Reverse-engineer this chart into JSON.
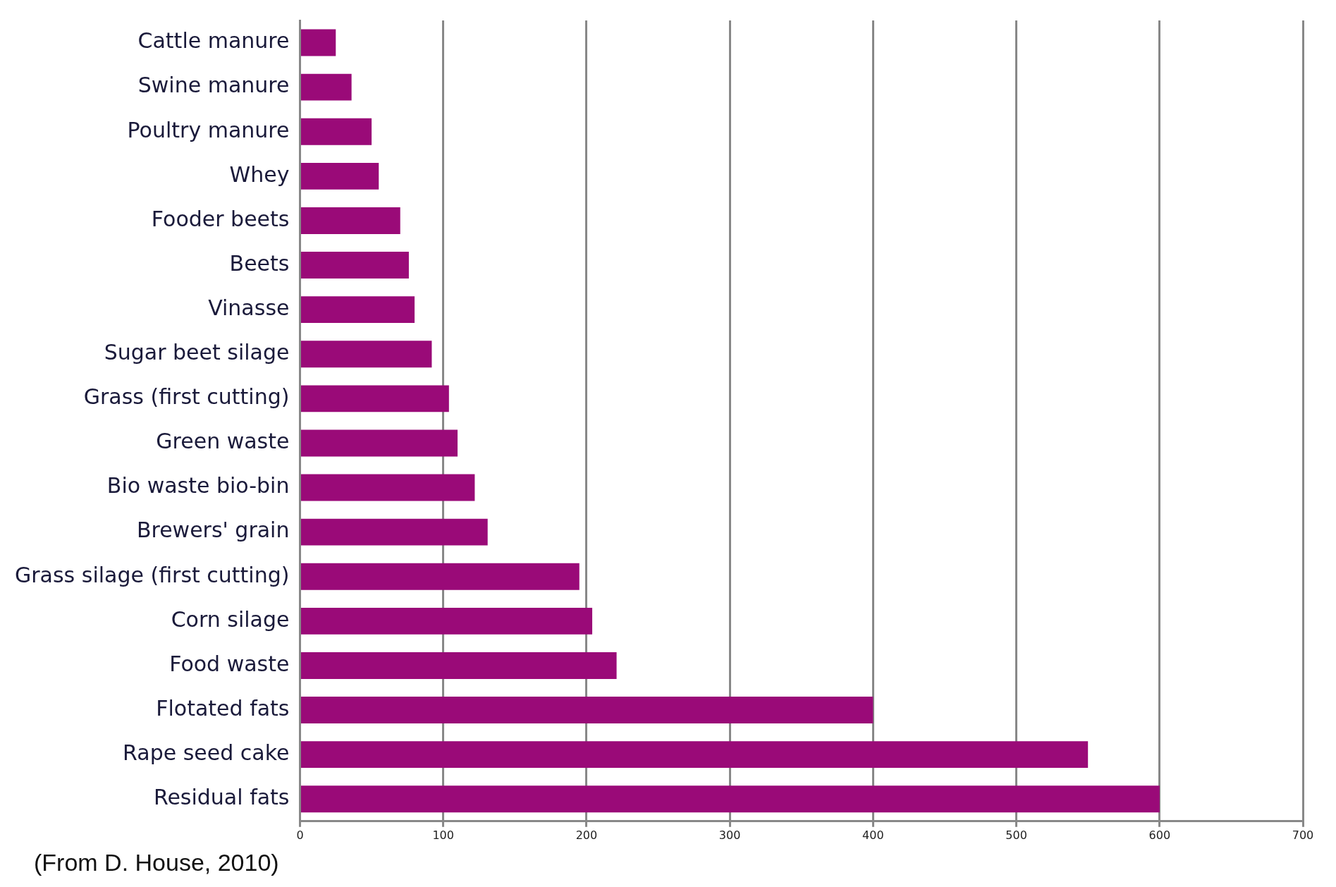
{
  "chart_data": {
    "type": "bar",
    "orientation": "horizontal",
    "categories": [
      "Cattle manure",
      "Swine manure",
      "Poultry manure",
      "Whey",
      "Fooder beets",
      "Beets",
      "Vinasse",
      "Sugar beet silage",
      "Grass (first cutting)",
      "Green waste",
      "Bio waste bio-bin",
      "Brewers' grain",
      "Grass silage (first cutting)",
      "Corn silage",
      "Food waste",
      "Flotated fats",
      "Rape seed cake",
      "Residual fats"
    ],
    "values": [
      25,
      36,
      50,
      55,
      70,
      76,
      80,
      92,
      104,
      110,
      122,
      131,
      195,
      204,
      221,
      400,
      550,
      600
    ],
    "color": "#9a0a78",
    "xlim": [
      0,
      700
    ],
    "xticks": [
      0,
      100,
      200,
      300,
      400,
      500,
      600,
      700
    ],
    "grid": "x",
    "legend": false,
    "annotations": [
      "(From D. House, 2010)"
    ]
  }
}
